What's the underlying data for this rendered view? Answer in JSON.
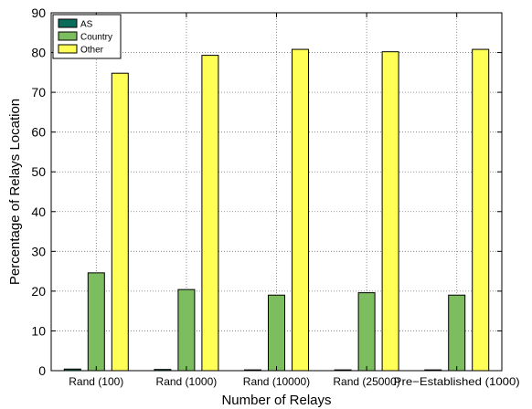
{
  "chart_data": {
    "type": "bar",
    "xlabel": "Number of Relays",
    "ylabel": "Percentage of Relays Location",
    "ylim": [
      0,
      90
    ],
    "yticks": [
      0,
      10,
      20,
      30,
      40,
      50,
      60,
      70,
      80,
      90
    ],
    "categories": [
      "Rand (100)",
      "Rand (1000)",
      "Rand (10000)",
      "Rand (25000)",
      "Pre−Established (1000)"
    ],
    "series": [
      {
        "name": "AS",
        "color": "#0b6b5a",
        "values": [
          0.4,
          0.3,
          0.2,
          0.2,
          0.2
        ]
      },
      {
        "name": "Country",
        "color": "#7cbd5f",
        "values": [
          24.6,
          20.4,
          19.0,
          19.6,
          19.0
        ]
      },
      {
        "name": "Other",
        "color": "#ffff55",
        "values": [
          74.8,
          79.3,
          80.8,
          80.2,
          80.8
        ]
      }
    ],
    "grid": true,
    "legend_position": "top-left"
  }
}
